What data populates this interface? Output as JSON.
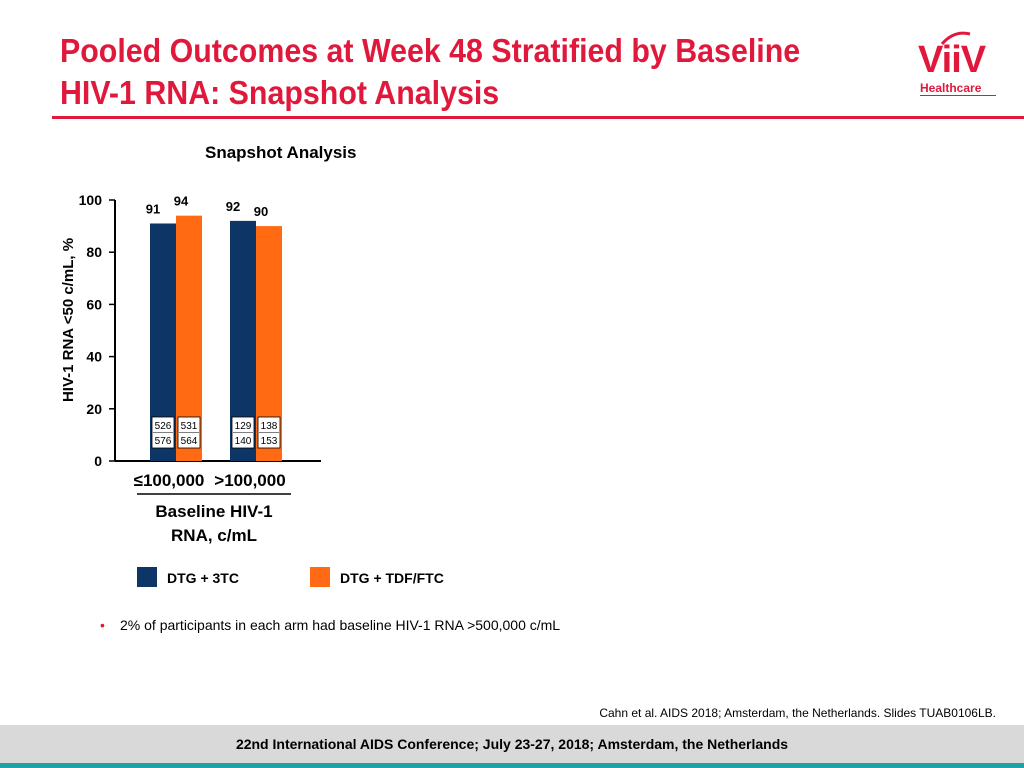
{
  "header": {
    "title_line1": "Pooled Outcomes at Week 48 Stratified by Baseline",
    "title_line2": "HIV-1 RNA: Snapshot Analysis",
    "logo_word": "ViiV",
    "logo_sub": "Healthcare"
  },
  "chart_data": {
    "type": "bar",
    "title": "Snapshot Analysis",
    "ylabel": "HIV-1 RNA <50 c/mL, %",
    "xlabel_line1": "Baseline HIV-1",
    "xlabel_line2": "RNA, c/mL",
    "ylim": [
      0,
      100
    ],
    "yticks": [
      "0",
      "20",
      "40",
      "60",
      "80",
      "100"
    ],
    "categories": [
      "≤100,000",
      ">100,000"
    ],
    "series": [
      {
        "name": "DTG + 3TC",
        "color": "#0d3566",
        "values": [
          91,
          92
        ],
        "value_labels": [
          "91",
          "92"
        ],
        "counts": [
          {
            "n": "526",
            "d": "576"
          },
          {
            "n": "129",
            "d": "140"
          }
        ]
      },
      {
        "name": "DTG + TDF/FTC",
        "color": "#ff6a13",
        "values": [
          94,
          90
        ],
        "value_labels": [
          "94",
          "90"
        ],
        "counts": [
          {
            "n": "531",
            "d": "564"
          },
          {
            "n": "138",
            "d": "153"
          }
        ]
      }
    ],
    "legend": [
      "DTG + 3TC",
      "DTG + TDF/FTC"
    ]
  },
  "bullet": "2% of participants in each arm had baseline HIV-1 RNA >500,000 c/mL",
  "citation": "Cahn et al. AIDS 2018; Amsterdam, the Netherlands. Slides TUAB0106LB.",
  "footer": "22nd International AIDS Conference; July 23-27, 2018; Amsterdam, the Netherlands",
  "colors": {
    "accent": "#e0193c",
    "footer_stripe": "#1ba3a8",
    "footer_bg": "#d9d9d9"
  }
}
